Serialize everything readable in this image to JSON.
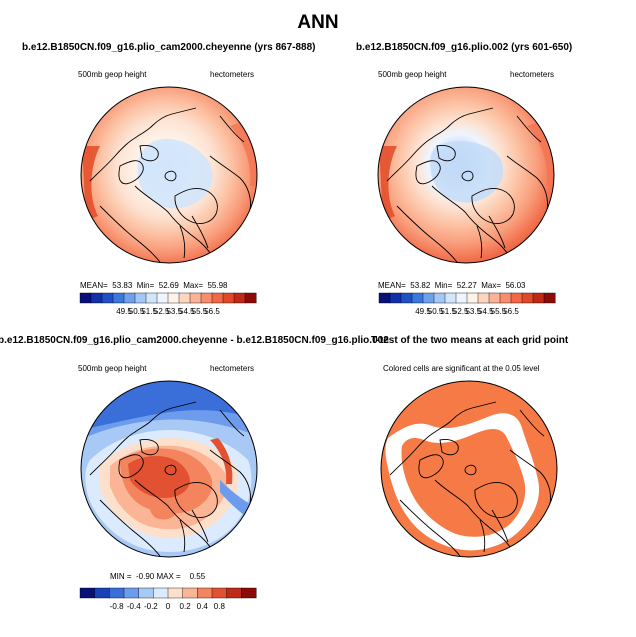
{
  "figure": {
    "title": "ANN"
  },
  "panels": [
    {
      "title": "b.e12.B1850CN.f09_g16.plio_cam2000.cheyenne (yrs 867-888)",
      "left_label": "500mb geop height",
      "right_label": "hectometers",
      "stats": {
        "mean_label": "MEAN=",
        "mean": "53.83",
        "min_label": "Min=",
        "min": "52.69",
        "max_label": "Max=",
        "max": "55.98"
      },
      "colorbar": {
        "labels": [
          "49.5",
          "50.5",
          "51.5",
          "52.5",
          "53.5",
          "54.5",
          "55.5",
          "56.5"
        ],
        "colors": [
          "#08107a",
          "#1230a8",
          "#2050c8",
          "#3a78dc",
          "#6ea0ec",
          "#a4c8f6",
          "#d2e6fb",
          "#eef5fe",
          "#fff2e8",
          "#fdd6c0",
          "#fbb295",
          "#f88c6c",
          "#f26846",
          "#e04828",
          "#c02818",
          "#8c0a08"
        ]
      }
    },
    {
      "title": "b.e12.B1850CN.f09_g16.plio.002 (yrs 601-650)",
      "left_label": "500mb geop height",
      "right_label": "hectometers",
      "stats": {
        "mean_label": "MEAN=",
        "mean": "53.82",
        "min_label": "Min=",
        "min": "52.27",
        "max_label": "Max=",
        "max": "56.03"
      },
      "colorbar": {
        "labels": [
          "49.5",
          "50.5",
          "51.5",
          "52.5",
          "53.5",
          "54.5",
          "55.5",
          "56.5"
        ],
        "colors": [
          "#08107a",
          "#1230a8",
          "#2050c8",
          "#3a78dc",
          "#6ea0ec",
          "#a4c8f6",
          "#d2e6fb",
          "#eef5fe",
          "#fff2e8",
          "#fdd6c0",
          "#fbb295",
          "#f88c6c",
          "#f26846",
          "#e04828",
          "#c02818",
          "#8c0a08"
        ]
      }
    },
    {
      "title": "b.e12.B1850CN.f09_g16.plio_cam2000.cheyenne - b.e12.B1850CN.f09_g16.plio.002",
      "left_label": "500mb geop height",
      "right_label": "hectometers",
      "stats": {
        "min_label": "MIN =",
        "min": "-0.90",
        "max_label": "MAX =",
        "max": "0.55"
      },
      "colorbar": {
        "labels": [
          "-0.8",
          "-0.4",
          "-0.2",
          "0",
          "0.2",
          "0.4",
          "0.8"
        ],
        "colors": [
          "#08107a",
          "#1a40b8",
          "#3a6ed8",
          "#6e9cec",
          "#a8c8f6",
          "#dbeafc",
          "#fde0cc",
          "#fbb494",
          "#f4845e",
          "#e25232",
          "#c02818",
          "#8c0a08"
        ]
      }
    },
    {
      "title": "T-test of the two means at each grid point",
      "subtitle": "Colored cells are significant at the 0.05 level",
      "fill_color": "#f57a46"
    }
  ],
  "legend_colors": {
    "ocean_gray": "#ffffff",
    "coast": "#000000"
  }
}
